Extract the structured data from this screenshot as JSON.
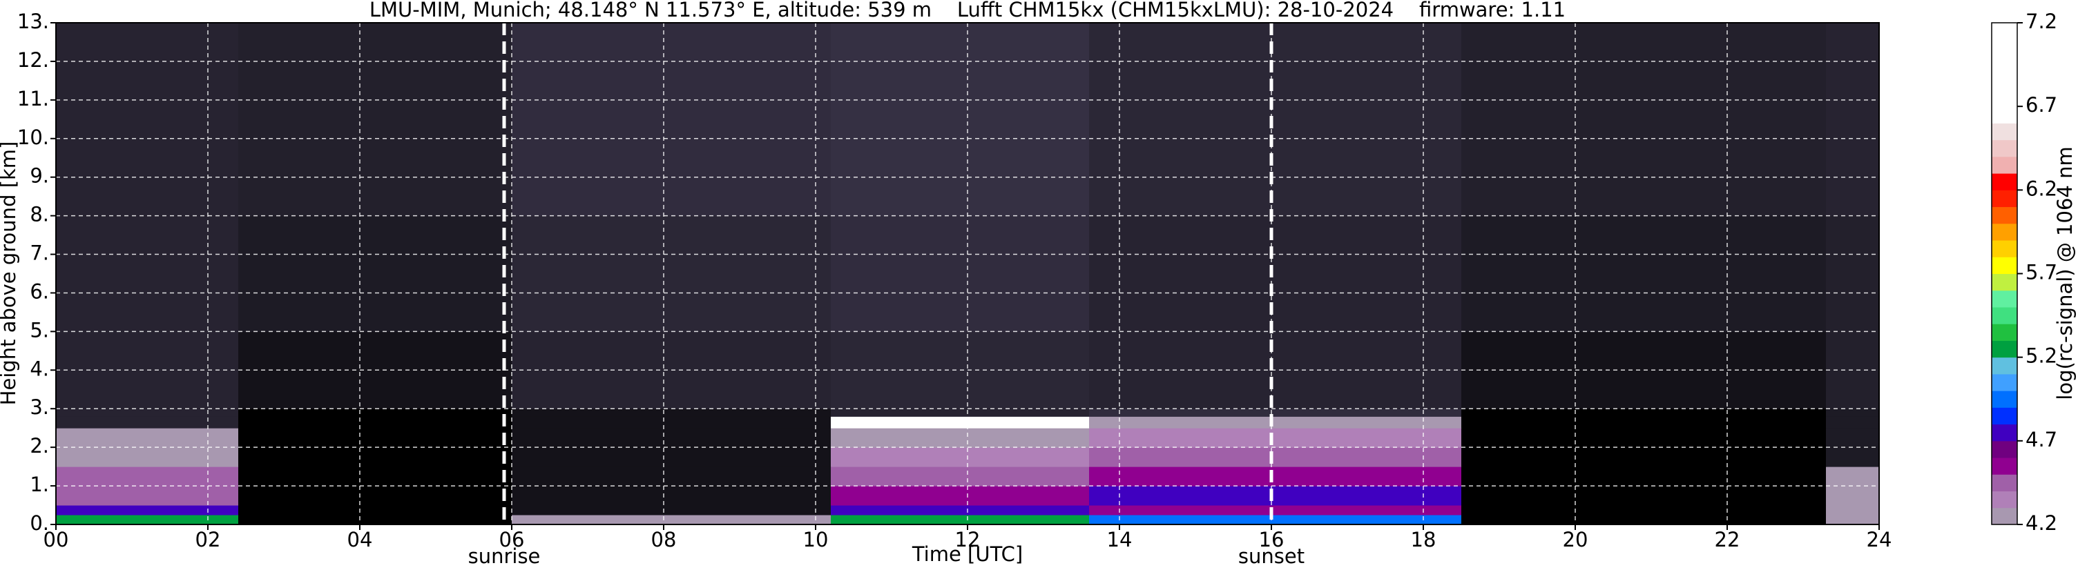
{
  "chart_data": {
    "type": "heatmap",
    "title": "LMU-MIM, Munich; 48.148° N 11.573° E, altitude: 539 m    Lufft CHM15kx (CHM15kxLMU): 28-10-2024    firmware: 1.11",
    "xlabel": "Time [UTC]",
    "ylabel": "Height above ground [km]",
    "colorbar_label": "log(rc-signal) @ 1064 nm",
    "xlim": [
      0,
      24
    ],
    "ylim": [
      0,
      13
    ],
    "xticks": [
      {
        "value": 0,
        "label": "00"
      },
      {
        "value": 2,
        "label": "02"
      },
      {
        "value": 4,
        "label": "04"
      },
      {
        "value": 6,
        "label": "06"
      },
      {
        "value": 8,
        "label": "08"
      },
      {
        "value": 10,
        "label": "10"
      },
      {
        "value": 12,
        "label": "12"
      },
      {
        "value": 14,
        "label": "14"
      },
      {
        "value": 16,
        "label": "16"
      },
      {
        "value": 18,
        "label": "18"
      },
      {
        "value": 20,
        "label": "20"
      },
      {
        "value": 22,
        "label": "22"
      },
      {
        "value": 24,
        "label": "24"
      }
    ],
    "yticks": [
      {
        "value": 0,
        "label": "0."
      },
      {
        "value": 1,
        "label": "1."
      },
      {
        "value": 2,
        "label": "2."
      },
      {
        "value": 3,
        "label": "3."
      },
      {
        "value": 4,
        "label": "4."
      },
      {
        "value": 5,
        "label": "5."
      },
      {
        "value": 6,
        "label": "6."
      },
      {
        "value": 7,
        "label": "7."
      },
      {
        "value": 8,
        "label": "8."
      },
      {
        "value": 9,
        "label": "9."
      },
      {
        "value": 10,
        "label": "10."
      },
      {
        "value": 11,
        "label": "11."
      },
      {
        "value": 12,
        "label": "12."
      },
      {
        "value": 13,
        "label": "13."
      }
    ],
    "grid": true,
    "clim": [
      4.2,
      7.2
    ],
    "cticks": [
      4.2,
      4.7,
      5.2,
      5.7,
      6.2,
      6.7,
      7.2
    ],
    "colors": [
      "#a898b0",
      "#b080b8",
      "#a060a8",
      "#900090",
      "#700080",
      "#4000c0",
      "#0030ff",
      "#0070ff",
      "#40a0ff",
      "#60c0e0",
      "#00a040",
      "#20c040",
      "#40e080",
      "#60f0a0",
      "#c0f040",
      "#ffff00",
      "#ffd000",
      "#ffa000",
      "#ff6000",
      "#ff2000",
      "#ff0000",
      "#f0b0b0",
      "#f0c8c8",
      "#f0e0e0",
      "#ffffff",
      "#ffffff",
      "#ffffff",
      "#ffffff",
      "#ffffff",
      "#ffffff"
    ],
    "xedges": [
      0,
      2.4,
      6,
      10.2,
      13.6,
      18.5,
      23.3,
      24
    ],
    "yedges": [
      0,
      0.25,
      0.5,
      1,
      1.5,
      2,
      2.5,
      2.8,
      3,
      5,
      8,
      13
    ],
    "z": [
      [
        5.3,
        3.9,
        4.2,
        5.2,
        5.0,
        3.9,
        4.3
      ],
      [
        4.8,
        3.9,
        4.0,
        4.7,
        4.6,
        3.9,
        4.3
      ],
      [
        4.5,
        3.9,
        4.0,
        4.6,
        4.75,
        3.9,
        4.3
      ],
      [
        4.4,
        3.9,
        4.0,
        4.5,
        4.55,
        3.9,
        4.3
      ],
      [
        4.3,
        3.9,
        4.0,
        4.35,
        4.45,
        3.9,
        4.05
      ],
      [
        4.25,
        3.9,
        4.0,
        4.25,
        4.35,
        3.9,
        4.05
      ],
      [
        4.1,
        3.9,
        4.0,
        6.8,
        4.3,
        3.9,
        4.05
      ],
      [
        4.1,
        3.9,
        4.0,
        4.1,
        4.15,
        3.9,
        4.05
      ],
      [
        4.1,
        4.0,
        4.1,
        4.12,
        4.1,
        4.0,
        4.08
      ],
      [
        4.1,
        4.05,
        4.12,
        4.15,
        4.1,
        4.05,
        4.08
      ],
      [
        4.1,
        4.08,
        4.15,
        4.17,
        4.12,
        4.08,
        4.1
      ]
    ],
    "annotations": [
      {
        "x": 5.9,
        "label": "sunrise"
      },
      {
        "x": 16.0,
        "label": "sunset"
      }
    ]
  }
}
